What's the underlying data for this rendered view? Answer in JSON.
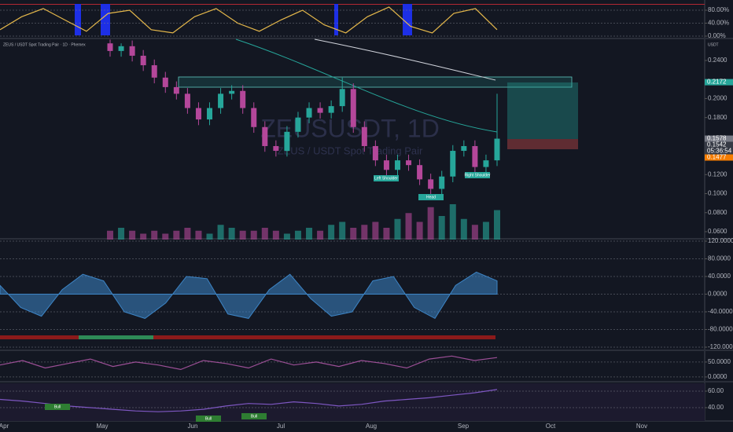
{
  "header": {
    "symbol": "ZEUS / USDT Spot Trading Pair · 1D · Phemex",
    "currency": "USDT"
  },
  "watermark": {
    "title": "ZEUSUSDT, 1D",
    "subtitle": "ZEUS / USDT Spot Trading Pair"
  },
  "annotations": {
    "left": "Left Shoulder",
    "head": "Head",
    "right": "Right Shoulder",
    "bull": [
      "Bull",
      "Bull",
      "Bull"
    ]
  },
  "x_axis": {
    "labels": [
      "Apr",
      "May",
      "Jun",
      "Jul",
      "Aug",
      "Sep",
      "Oct",
      "Nov"
    ]
  },
  "chart_data": [
    {
      "type": "candlestick",
      "pane": "main",
      "up_color": "#26a69a",
      "down_color": "#b4479a",
      "open": [
        0.258,
        0.25,
        0.255,
        0.245,
        0.235,
        0.222,
        0.212,
        0.205,
        0.19,
        0.178,
        0.19,
        0.205,
        0.208,
        0.19,
        0.17,
        0.15,
        0.145,
        0.165,
        0.18,
        0.19,
        0.185,
        0.192,
        0.21,
        0.17,
        0.15,
        0.135,
        0.125,
        0.135,
        0.13,
        0.115,
        0.105,
        0.118,
        0.145,
        0.15,
        0.128,
        0.135
      ],
      "high": [
        0.262,
        0.258,
        0.261,
        0.251,
        0.241,
        0.228,
        0.218,
        0.211,
        0.196,
        0.196,
        0.211,
        0.214,
        0.214,
        0.196,
        0.176,
        0.156,
        0.171,
        0.186,
        0.196,
        0.196,
        0.198,
        0.222,
        0.216,
        0.176,
        0.156,
        0.141,
        0.141,
        0.141,
        0.136,
        0.121,
        0.124,
        0.151,
        0.156,
        0.156,
        0.141,
        0.205
      ],
      "low": [
        0.244,
        0.244,
        0.239,
        0.229,
        0.216,
        0.206,
        0.199,
        0.184,
        0.172,
        0.172,
        0.184,
        0.199,
        0.184,
        0.164,
        0.144,
        0.139,
        0.139,
        0.159,
        0.174,
        0.179,
        0.179,
        0.186,
        0.164,
        0.144,
        0.129,
        0.119,
        0.119,
        0.124,
        0.109,
        0.099,
        0.099,
        0.112,
        0.139,
        0.122,
        0.122,
        0.129
      ],
      "close": [
        0.25,
        0.255,
        0.245,
        0.235,
        0.222,
        0.212,
        0.205,
        0.19,
        0.178,
        0.19,
        0.205,
        0.208,
        0.19,
        0.17,
        0.15,
        0.145,
        0.165,
        0.18,
        0.19,
        0.185,
        0.192,
        0.21,
        0.17,
        0.15,
        0.135,
        0.125,
        0.135,
        0.13,
        0.115,
        0.105,
        0.118,
        0.145,
        0.15,
        0.128,
        0.135,
        0.1578
      ],
      "volume": [
        3,
        4,
        3,
        2,
        3,
        2,
        3,
        4,
        3,
        2,
        5,
        4,
        3,
        3,
        4,
        3,
        2,
        3,
        4,
        3,
        5,
        6,
        4,
        5,
        6,
        4,
        7,
        9,
        6,
        11,
        8,
        12,
        7,
        5,
        6,
        10
      ],
      "ylim": [
        0.0517,
        0.2623
      ],
      "yticks": [
        {
          "value": 0.24,
          "label": "0.2400"
        },
        {
          "value": 0.2,
          "label": "0.2000"
        },
        {
          "value": 0.18,
          "label": "0.1800"
        },
        {
          "value": 0.12,
          "label": "0.1200"
        },
        {
          "value": 0.1,
          "label": "0.1000"
        },
        {
          "value": 0.08,
          "label": "0.0800"
        },
        {
          "value": 0.06,
          "label": "0.0600"
        }
      ],
      "price_labels": [
        {
          "value": 0.2172,
          "label": "0.2172",
          "color": "#26a69a"
        },
        {
          "value": 0.1578,
          "label": "0.1578",
          "color": "#787b86"
        },
        {
          "value": 0.1542,
          "label": "0.1542",
          "color": "#363a45"
        },
        {
          "label": "05:36:54",
          "color": "#363a45"
        },
        {
          "value": 0.1477,
          "label": "0.1477",
          "color": "#f57c00"
        }
      ]
    },
    {
      "type": "line",
      "pane": "top",
      "series": [
        {
          "name": "Stoch",
          "color": "#e5b84b",
          "values": [
            20,
            60,
            85,
            50,
            15,
            70,
            80,
            20,
            10,
            60,
            85,
            40,
            15,
            50,
            80,
            35,
            10,
            60,
            90,
            30,
            10,
            70,
            85,
            20
          ]
        }
      ],
      "ylim": [
        0,
        100
      ],
      "yticks": [
        {
          "value": 80,
          "label": "80.00%"
        },
        {
          "value": 40,
          "label": "40.00%"
        },
        {
          "value": 0,
          "label": "0.00%"
        }
      ]
    },
    {
      "type": "area",
      "pane": "osc",
      "series": [
        {
          "name": "Wave",
          "color": "#3d85c6",
          "values": [
            20,
            -30,
            -50,
            10,
            45,
            30,
            -40,
            -55,
            -20,
            40,
            35,
            -45,
            -55,
            10,
            45,
            -10,
            -50,
            -40,
            30,
            40,
            -30,
            -55,
            20,
            50,
            30
          ]
        }
      ],
      "ylim": [
        -120,
        120
      ],
      "yticks": [
        {
          "value": 120,
          "label": "120.0000"
        },
        {
          "value": 80,
          "label": "80.0000"
        },
        {
          "value": 40,
          "label": "40.0000"
        },
        {
          "value": 0,
          "label": "0.0000"
        },
        {
          "value": -40,
          "label": "-40.0000"
        },
        {
          "value": -80,
          "label": "-80.0000"
        },
        {
          "value": -120,
          "label": "-120.0000"
        }
      ]
    },
    {
      "type": "line",
      "pane": "rsi",
      "series": [
        {
          "name": "RSI",
          "color": "#9c4f96",
          "values": [
            40,
            55,
            30,
            45,
            60,
            35,
            50,
            40,
            25,
            55,
            45,
            30,
            60,
            40,
            50,
            35,
            55,
            45,
            30,
            60,
            70,
            55,
            65
          ]
        }
      ],
      "ylim": [
        -16,
        84
      ],
      "yticks": [
        {
          "value": 50,
          "label": "50.0000"
        },
        {
          "value": 0,
          "label": "0.0000"
        }
      ]
    },
    {
      "type": "line",
      "pane": "bottom",
      "series": [
        {
          "name": "Signal",
          "color": "#7e57c2",
          "values": [
            50,
            48,
            45,
            42,
            40,
            38,
            36,
            35,
            36,
            38,
            42,
            45,
            44,
            47,
            45,
            42,
            44,
            48,
            50,
            52,
            55,
            58,
            62
          ]
        }
      ],
      "ylim": [
        20,
        69.5
      ],
      "yticks": [
        {
          "value": 60,
          "label": "60.00"
        },
        {
          "value": 40,
          "label": "40.00"
        }
      ]
    }
  ]
}
